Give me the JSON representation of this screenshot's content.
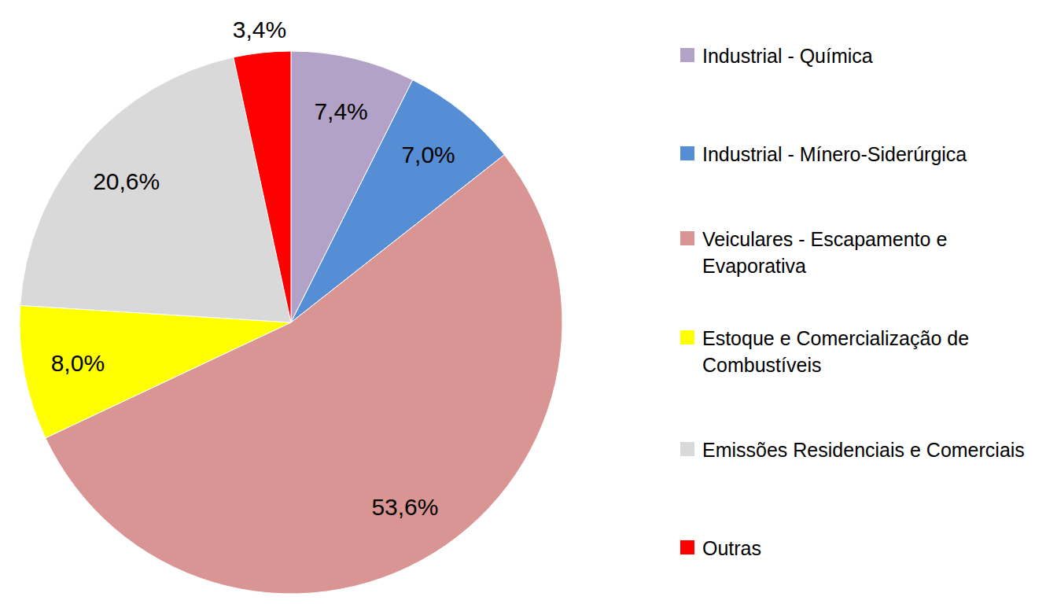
{
  "chart_data": {
    "type": "pie",
    "categories": [
      "Industrial - Química",
      "Industrial - Mínero-Siderúrgica",
      "Veiculares - Escapamento e Evaporativa",
      "Estoque e Comercialização de Combustíveis",
      "Emissões Residenciais e Comerciais",
      "Outras"
    ],
    "values": [
      7.4,
      7.0,
      53.6,
      8.0,
      20.6,
      3.4
    ],
    "value_labels": [
      "7,4%",
      "7,0%",
      "53,6%",
      "8,0%",
      "20,6%",
      "3,4%"
    ],
    "colors": [
      "#B3A2C7",
      "#558ED5",
      "#D99594",
      "#FFFF00",
      "#D9D9D9",
      "#FF0000"
    ],
    "data_labels": true,
    "legend": "right"
  }
}
